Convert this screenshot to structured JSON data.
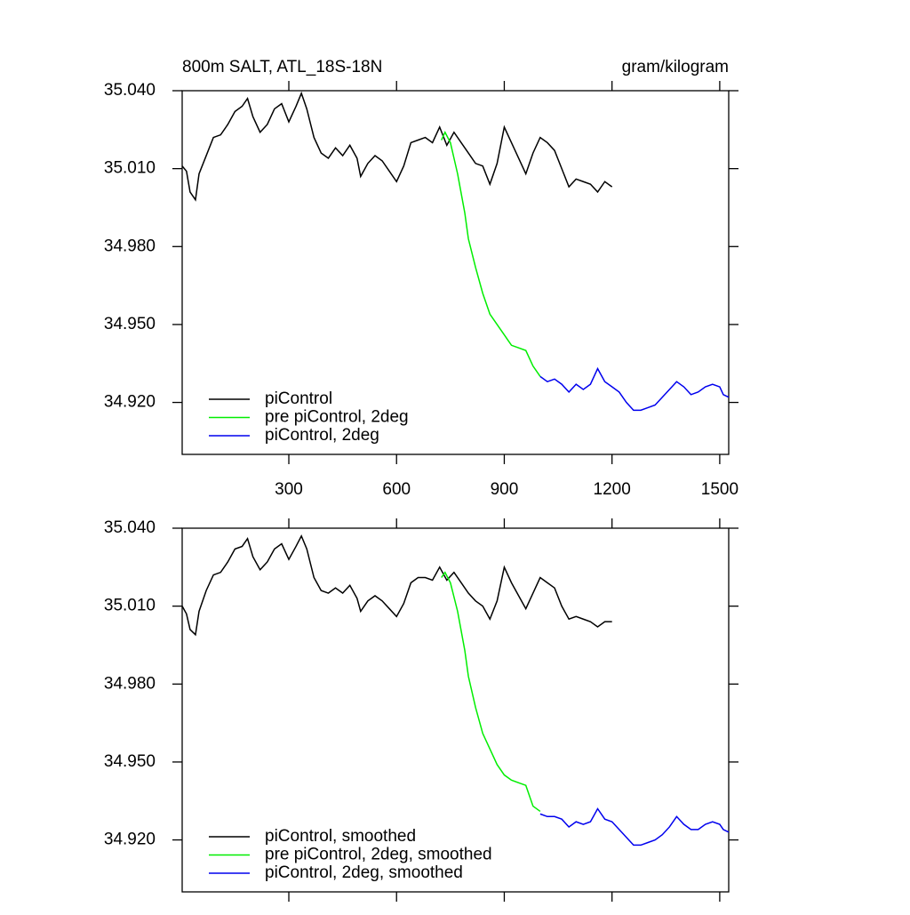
{
  "chart_data": [
    {
      "type": "line",
      "title": "800m SALT, ATL_18S-18N",
      "units": "gram/kilogram",
      "xlim": [
        3,
        1525
      ],
      "xticks": [
        300,
        600,
        900,
        1200,
        1500
      ],
      "ylim": [
        34.9,
        35.04
      ],
      "yticks": [
        {
          "value": 34.92,
          "label": "34.920"
        },
        {
          "value": 34.95,
          "label": "34.950"
        },
        {
          "value": 34.98,
          "label": "34.980"
        },
        {
          "value": 35.01,
          "label": "35.010"
        },
        {
          "value": 35.04,
          "label": "35.040"
        }
      ],
      "legend": "lower left",
      "series": [
        {
          "name": "piControl",
          "color": "#000000",
          "x": [
            3,
            15,
            25,
            40,
            50,
            70,
            90,
            110,
            130,
            150,
            170,
            185,
            200,
            220,
            240,
            260,
            280,
            300,
            320,
            335,
            350,
            370,
            390,
            410,
            430,
            450,
            470,
            490,
            500,
            520,
            540,
            560,
            580,
            600,
            620,
            640,
            660,
            680,
            700,
            720,
            740,
            760,
            780,
            800,
            820,
            840,
            860,
            880,
            900,
            920,
            940,
            960,
            980,
            1000,
            1020,
            1040,
            1060,
            1080,
            1100,
            1120,
            1140,
            1160,
            1180,
            1200
          ],
          "values": [
            35.011,
            35.009,
            35.001,
            34.998,
            35.008,
            35.015,
            35.022,
            35.023,
            35.027,
            35.032,
            35.034,
            35.037,
            35.03,
            35.024,
            35.027,
            35.033,
            35.035,
            35.028,
            35.034,
            35.039,
            35.033,
            35.022,
            35.016,
            35.014,
            35.018,
            35.015,
            35.019,
            35.014,
            35.007,
            35.012,
            35.015,
            35.013,
            35.009,
            35.005,
            35.011,
            35.02,
            35.021,
            35.022,
            35.02,
            35.026,
            35.019,
            35.024,
            35.02,
            35.016,
            35.012,
            35.011,
            35.004,
            35.012,
            35.026,
            35.02,
            35.014,
            35.008,
            35.016,
            35.022,
            35.02,
            35.017,
            35.01,
            35.003,
            35.006,
            35.005,
            35.004,
            35.001,
            35.005,
            35.003
          ]
        },
        {
          "name": "pre piControl, 2deg",
          "color": "#00ee00",
          "x": [
            725,
            735,
            750,
            770,
            790,
            800,
            820,
            840,
            860,
            880,
            900,
            920,
            940,
            960,
            980,
            1000
          ],
          "values": [
            35.021,
            35.024,
            35.02,
            35.008,
            34.993,
            34.983,
            34.972,
            34.962,
            34.954,
            34.95,
            34.946,
            34.942,
            34.941,
            34.94,
            34.934,
            34.93
          ]
        },
        {
          "name": "piControl, 2deg",
          "color": "#0000ee",
          "x": [
            1000,
            1020,
            1040,
            1060,
            1080,
            1100,
            1120,
            1140,
            1160,
            1180,
            1200,
            1220,
            1240,
            1260,
            1280,
            1300,
            1320,
            1340,
            1360,
            1380,
            1400,
            1420,
            1440,
            1460,
            1480,
            1500,
            1510,
            1525
          ],
          "values": [
            34.93,
            34.928,
            34.929,
            34.927,
            34.924,
            34.927,
            34.925,
            34.927,
            34.933,
            34.928,
            34.926,
            34.924,
            34.92,
            34.917,
            34.917,
            34.918,
            34.919,
            34.922,
            34.925,
            34.928,
            34.926,
            34.923,
            34.924,
            34.926,
            34.927,
            34.926,
            34.923,
            34.922
          ]
        }
      ]
    },
    {
      "type": "line",
      "xlim": [
        3,
        1525
      ],
      "ylim": [
        34.9,
        35.04
      ],
      "yticks": [
        {
          "value": 34.92,
          "label": "34.920"
        },
        {
          "value": 34.95,
          "label": "34.950"
        },
        {
          "value": 34.98,
          "label": "34.980"
        },
        {
          "value": 35.01,
          "label": "35.010"
        },
        {
          "value": 35.04,
          "label": "35.040"
        }
      ],
      "legend": "lower left",
      "series": [
        {
          "name": "piControl, smoothed",
          "color": "#000000",
          "x": [
            3,
            15,
            25,
            40,
            50,
            70,
            90,
            110,
            130,
            150,
            170,
            185,
            200,
            220,
            240,
            260,
            280,
            300,
            320,
            335,
            350,
            370,
            390,
            410,
            430,
            450,
            470,
            490,
            500,
            520,
            540,
            560,
            580,
            600,
            620,
            640,
            660,
            680,
            700,
            720,
            740,
            760,
            780,
            800,
            820,
            840,
            860,
            880,
            900,
            920,
            940,
            960,
            980,
            1000,
            1020,
            1040,
            1060,
            1080,
            1100,
            1120,
            1140,
            1160,
            1180,
            1200
          ],
          "values": [
            35.01,
            35.007,
            35.001,
            34.999,
            35.008,
            35.016,
            35.022,
            35.023,
            35.027,
            35.032,
            35.033,
            35.036,
            35.029,
            35.024,
            35.027,
            35.032,
            35.034,
            35.028,
            35.033,
            35.037,
            35.032,
            35.021,
            35.016,
            35.015,
            35.017,
            35.015,
            35.018,
            35.013,
            35.008,
            35.012,
            35.014,
            35.012,
            35.009,
            35.006,
            35.011,
            35.019,
            35.021,
            35.021,
            35.02,
            35.025,
            35.02,
            35.023,
            35.019,
            35.015,
            35.012,
            35.01,
            35.005,
            35.012,
            35.025,
            35.019,
            35.014,
            35.009,
            35.015,
            35.021,
            35.019,
            35.017,
            35.01,
            35.005,
            35.006,
            35.005,
            35.004,
            35.002,
            35.004,
            35.004
          ]
        },
        {
          "name": "pre piControl, 2deg, smoothed",
          "color": "#00ee00",
          "x": [
            725,
            735,
            750,
            770,
            790,
            800,
            820,
            840,
            860,
            880,
            900,
            920,
            940,
            960,
            980,
            1000
          ],
          "values": [
            35.021,
            35.023,
            35.019,
            35.008,
            34.993,
            34.983,
            34.971,
            34.961,
            34.955,
            34.949,
            34.945,
            34.943,
            34.942,
            34.941,
            34.933,
            34.931
          ]
        },
        {
          "name": "piControl, 2deg, smoothed",
          "color": "#0000ee",
          "x": [
            1000,
            1020,
            1040,
            1060,
            1080,
            1100,
            1120,
            1140,
            1160,
            1180,
            1200,
            1220,
            1240,
            1260,
            1280,
            1300,
            1320,
            1340,
            1360,
            1380,
            1400,
            1420,
            1440,
            1460,
            1480,
            1500,
            1510,
            1525
          ],
          "values": [
            34.93,
            34.929,
            34.929,
            34.928,
            34.925,
            34.927,
            34.926,
            34.927,
            34.932,
            34.928,
            34.927,
            34.924,
            34.921,
            34.918,
            34.918,
            34.919,
            34.92,
            34.922,
            34.925,
            34.929,
            34.926,
            34.924,
            34.924,
            34.926,
            34.927,
            34.926,
            34.924,
            34.923
          ]
        }
      ]
    }
  ]
}
